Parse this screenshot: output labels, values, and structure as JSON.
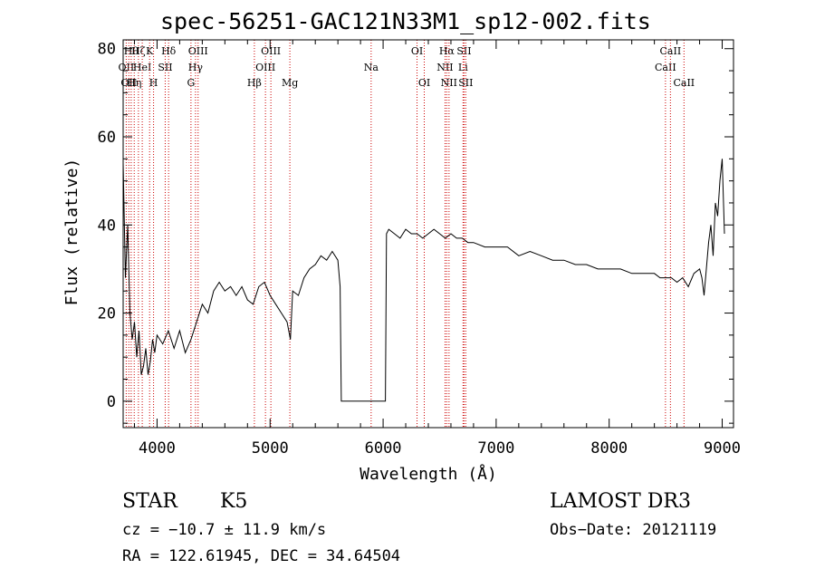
{
  "chart_data": {
    "type": "line",
    "title": "spec-56251-GAC121N33M1_sp12-002.fits",
    "xlabel": "Wavelength (Å)",
    "ylabel": "Flux (relative)",
    "xlim": [
      3700,
      9100
    ],
    "ylim": [
      -6,
      82
    ],
    "x_ticks": [
      4000,
      5000,
      6000,
      7000,
      8000,
      9000
    ],
    "x_tick_labels": [
      "4000",
      "5000",
      "6000",
      "7000",
      "8000",
      "9000"
    ],
    "y_ticks": [
      0,
      20,
      40,
      60,
      80
    ],
    "y_tick_labels": [
      "0",
      "20",
      "40",
      "60",
      "80"
    ],
    "series": [
      {
        "name": "flux",
        "color": "#000000",
        "x": [
          3700,
          3720,
          3740,
          3760,
          3780,
          3800,
          3820,
          3840,
          3860,
          3880,
          3900,
          3920,
          3940,
          3960,
          3980,
          4000,
          4050,
          4100,
          4150,
          4200,
          4250,
          4300,
          4350,
          4400,
          4450,
          4500,
          4550,
          4600,
          4650,
          4700,
          4750,
          4800,
          4850,
          4900,
          4950,
          5000,
          5050,
          5100,
          5150,
          5180,
          5200,
          5250,
          5300,
          5350,
          5400,
          5450,
          5500,
          5550,
          5600,
          5620,
          5630,
          5900,
          6020,
          6030,
          6050,
          6100,
          6150,
          6200,
          6250,
          6300,
          6350,
          6400,
          6450,
          6500,
          6550,
          6600,
          6650,
          6700,
          6750,
          6800,
          6900,
          7000,
          7100,
          7200,
          7300,
          7400,
          7500,
          7600,
          7700,
          7800,
          7900,
          8000,
          8100,
          8200,
          8300,
          8400,
          8450,
          8500,
          8550,
          8600,
          8650,
          8700,
          8750,
          8800,
          8820,
          8840,
          8860,
          8880,
          8900,
          8920,
          8940,
          8960,
          8980,
          9000,
          9020
        ],
        "values": [
          54,
          28,
          40,
          20,
          14,
          18,
          10,
          16,
          6,
          8,
          12,
          6,
          9,
          14,
          11,
          15,
          13,
          16,
          12,
          16,
          11,
          14,
          18,
          22,
          20,
          25,
          27,
          25,
          26,
          24,
          26,
          23,
          22,
          26,
          27,
          24,
          22,
          20,
          18,
          14,
          25,
          24,
          28,
          30,
          31,
          33,
          32,
          34,
          32,
          26,
          0,
          0,
          0,
          38,
          39,
          38,
          37,
          39,
          38,
          38,
          37,
          38,
          39,
          38,
          37,
          38,
          37,
          37,
          36,
          36,
          35,
          35,
          35,
          33,
          34,
          33,
          32,
          32,
          31,
          31,
          30,
          30,
          30,
          29,
          29,
          29,
          28,
          28,
          28,
          27,
          28,
          26,
          29,
          30,
          28,
          24,
          30,
          36,
          40,
          33,
          45,
          42,
          50,
          55,
          38
        ]
      }
    ],
    "line_markers": [
      {
        "wl": 3727,
        "label": "OII",
        "row": 2
      },
      {
        "wl": 3750,
        "label": "OII",
        "row": 3
      },
      {
        "wl": 3771,
        "label": "Hθ",
        "row": 1
      },
      {
        "wl": 3798,
        "label": "Hη",
        "row": 3
      },
      {
        "wl": 3835,
        "label": "Hζ",
        "row": 1
      },
      {
        "wl": 3869,
        "label": "HeI",
        "row": 2
      },
      {
        "wl": 3934,
        "label": "K",
        "row": 1
      },
      {
        "wl": 3969,
        "label": "H",
        "row": 3
      },
      {
        "wl": 4072,
        "label": "SII",
        "row": 2
      },
      {
        "wl": 4102,
        "label": "Hδ",
        "row": 1
      },
      {
        "wl": 4300,
        "label": "G",
        "row": 3
      },
      {
        "wl": 4340,
        "label": "Hγ",
        "row": 2
      },
      {
        "wl": 4363,
        "label": "OIII",
        "row": 1
      },
      {
        "wl": 4861,
        "label": "Hβ",
        "row": 3
      },
      {
        "wl": 4959,
        "label": "OIII",
        "row": 2
      },
      {
        "wl": 5007,
        "label": "OIII",
        "row": 1
      },
      {
        "wl": 5175,
        "label": "Mg",
        "row": 3
      },
      {
        "wl": 5894,
        "label": "Na",
        "row": 2
      },
      {
        "wl": 6300,
        "label": "OI",
        "row": 1
      },
      {
        "wl": 6364,
        "label": "OI",
        "row": 3
      },
      {
        "wl": 6548,
        "label": "NII",
        "row": 2
      },
      {
        "wl": 6563,
        "label": "Hα",
        "row": 1
      },
      {
        "wl": 6583,
        "label": "NII",
        "row": 3
      },
      {
        "wl": 6707,
        "label": "Li",
        "row": 2
      },
      {
        "wl": 6716,
        "label": "SII",
        "row": 1
      },
      {
        "wl": 6731,
        "label": "SII",
        "row": 3
      },
      {
        "wl": 8498,
        "label": "CaII",
        "row": 2
      },
      {
        "wl": 8542,
        "label": "CaII",
        "row": 1
      },
      {
        "wl": 8662,
        "label": "CaII",
        "row": 3
      }
    ],
    "marker_color": "#cc0000"
  },
  "info": {
    "object_type": "STAR",
    "subclass": "K5",
    "survey": "LAMOST DR3",
    "cz": "cz = −10.7 ± 11.9 km/s",
    "obs_date": "Obs−Date: 20121119",
    "radec": "RA = 122.61945, DEC =  34.64504"
  }
}
